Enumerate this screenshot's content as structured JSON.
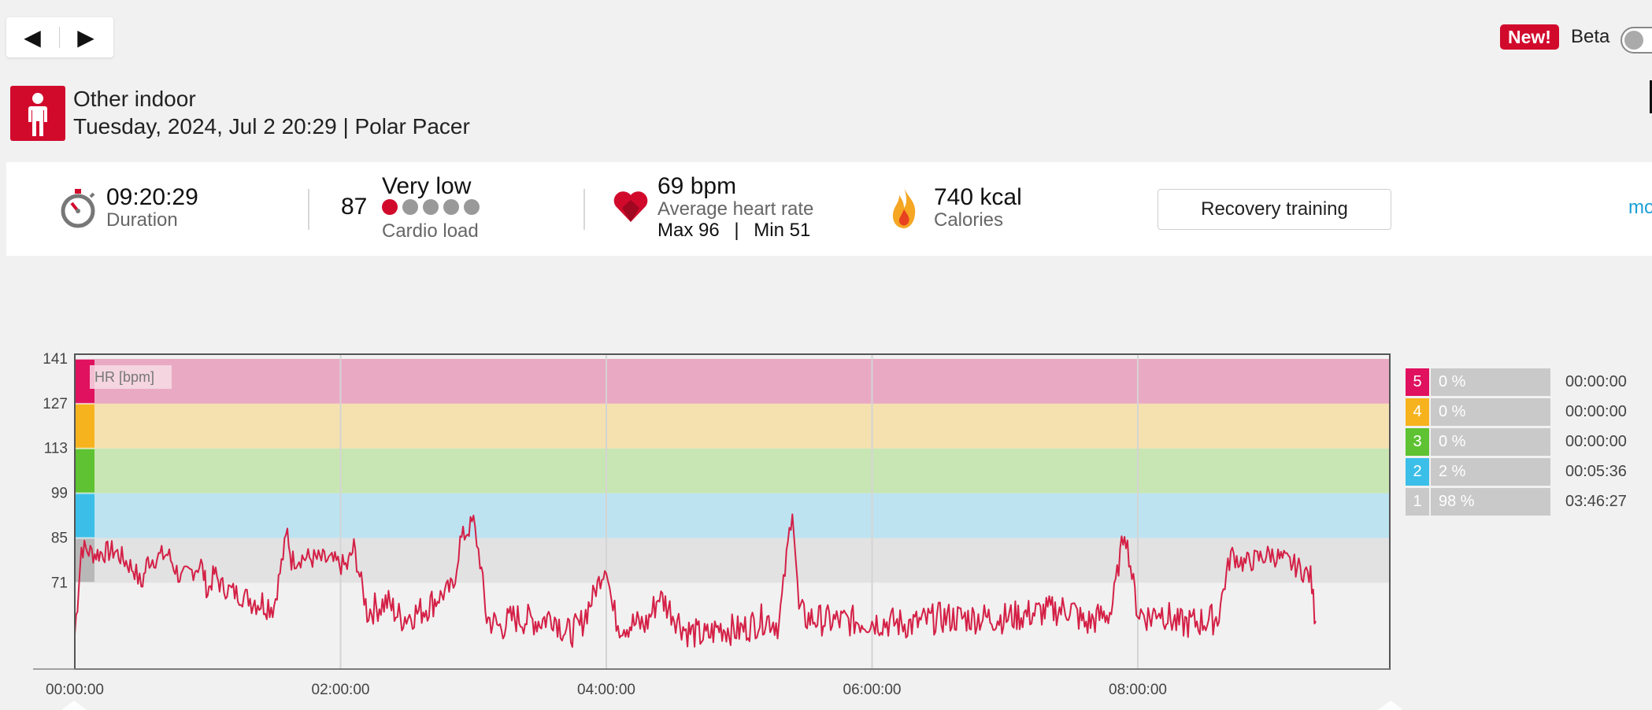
{
  "nav": {
    "prev": "◀",
    "next": "▶"
  },
  "topbar": {
    "new_badge": "New!",
    "beta_label": "Beta",
    "beta_enabled": false
  },
  "header": {
    "sport": "Other indoor",
    "datetime_device": "Tuesday, 2024, Jul 2 20:29 | Polar Pacer",
    "sport_icon": "person-icon"
  },
  "stats": {
    "duration_value": "09:20:29",
    "duration_label": "Duration",
    "cardio_value": "87",
    "cardio_level": "Very low",
    "cardio_label": "Cardio load",
    "cardio_dots_filled": 1,
    "cardio_dots_total": 5,
    "hr_value": "69 bpm",
    "hr_label": "Average heart rate",
    "hr_max": "Max 96",
    "hr_sep": "|",
    "hr_min": "Min 51",
    "calories_value": "740 kcal",
    "calories_label": "Calories",
    "benefit_button": "Recovery training",
    "more_link": "mo"
  },
  "colors": {
    "brand_red": "#d10a2c",
    "hr_line": "#d42046",
    "zone5": "#e0115f",
    "zone4": "#f7b31e",
    "zone3": "#5ec232",
    "zone2": "#3bbfe8",
    "zone1": "#c9c9c9"
  },
  "zones": [
    {
      "num": "5",
      "pct": "0 %",
      "time": "00:00:00",
      "color": "#e0115f"
    },
    {
      "num": "4",
      "pct": "0 %",
      "time": "00:00:00",
      "color": "#f7b31e"
    },
    {
      "num": "3",
      "pct": "0 %",
      "time": "00:00:00",
      "color": "#5ec232"
    },
    {
      "num": "2",
      "pct": "2 %",
      "time": "00:05:36",
      "color": "#3bbfe8"
    },
    {
      "num": "1",
      "pct": "98 %",
      "time": "03:46:27",
      "color": "#c9c9c9"
    }
  ],
  "chart_data": {
    "type": "line",
    "title": "",
    "ylabel": "HR [bpm]",
    "xlabel": "",
    "y_ticks": [
      "141",
      "127",
      "113",
      "99",
      "85",
      "71"
    ],
    "x_ticks": [
      "00:00:00",
      "02:00:00",
      "04:00:00",
      "06:00:00",
      "08:00:00"
    ],
    "ylim": [
      44,
      145
    ],
    "xlim_hours": [
      0,
      9.34
    ],
    "zone_bands": [
      {
        "zone": 5,
        "from": 127,
        "to": 141
      },
      {
        "zone": 4,
        "from": 113,
        "to": 127
      },
      {
        "zone": 3,
        "from": 99,
        "to": 113
      },
      {
        "zone": 2,
        "from": 85,
        "to": 99
      },
      {
        "zone": 1,
        "from": 71,
        "to": 85
      }
    ],
    "series": [
      {
        "x_hours": [
          0,
          0.05,
          0.15,
          0.3,
          0.45,
          0.5,
          0.55,
          0.7,
          0.8,
          0.95,
          1.0,
          1.05,
          1.1,
          1.25,
          1.4,
          1.5,
          1.6,
          1.63,
          1.7,
          1.9,
          2.05,
          2.1,
          2.2,
          2.35,
          2.45,
          2.6,
          2.85,
          2.9,
          3.0,
          3.05,
          3.1,
          3.2,
          3.3,
          3.5,
          3.6,
          3.7,
          3.8,
          4.0,
          4.05,
          4.1,
          4.3,
          4.4,
          4.6,
          4.75,
          4.85,
          5.0,
          5.1,
          5.2,
          5.3,
          5.4,
          5.45,
          5.5,
          5.7,
          6.0,
          6.3,
          6.5,
          6.8,
          7.0,
          7.3,
          7.5,
          7.6,
          7.8,
          7.9,
          8.0,
          8.1,
          8.15,
          8.3,
          8.5,
          8.6,
          8.7,
          8.8,
          9.0,
          9.2,
          9.3,
          9.34
        ],
        "y": [
          55,
          82,
          80,
          81,
          75,
          70,
          78,
          80,
          72,
          77,
          68,
          74,
          70,
          67,
          65,
          64,
          87,
          78,
          79,
          78,
          76,
          82,
          62,
          65,
          60,
          62,
          70,
          84,
          90,
          78,
          60,
          57,
          60,
          59,
          61,
          55,
          57,
          77,
          62,
          58,
          58,
          67,
          56,
          54,
          57,
          56,
          58,
          60,
          58,
          95,
          62,
          60,
          59,
          59,
          58,
          60,
          60,
          60,
          62,
          63,
          58,
          62,
          88,
          62,
          60,
          63,
          58,
          59,
          60,
          80,
          77,
          80,
          76,
          73,
          59
        ]
      }
    ]
  }
}
